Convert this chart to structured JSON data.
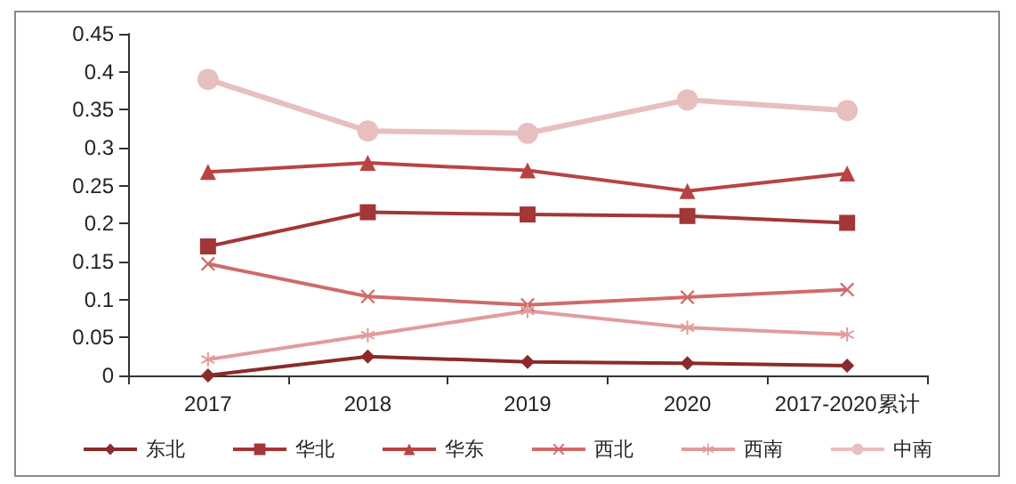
{
  "chart_data": {
    "type": "line",
    "categories": [
      "2017",
      "2018",
      "2019",
      "2020",
      "2017-2020累计"
    ],
    "series": [
      {
        "name": "东北",
        "color": "#8b2a2a",
        "marker": "diamond",
        "values": [
          0,
          0.025,
          0.018,
          0.016,
          0.013
        ]
      },
      {
        "name": "华北",
        "color": "#a33636",
        "marker": "square",
        "values": [
          0.17,
          0.215,
          0.212,
          0.21,
          0.201
        ]
      },
      {
        "name": "华东",
        "color": "#b94343",
        "marker": "triangle",
        "values": [
          0.268,
          0.28,
          0.27,
          0.243,
          0.266
        ]
      },
      {
        "name": "西北",
        "color": "#d06a6a",
        "marker": "cross",
        "values": [
          0.147,
          0.104,
          0.093,
          0.103,
          0.113
        ]
      },
      {
        "name": "西南",
        "color": "#e09c9c",
        "marker": "star",
        "values": [
          0.021,
          0.053,
          0.085,
          0.063,
          0.054
        ]
      },
      {
        "name": "中南",
        "color": "#e8bfbf",
        "marker": "circle",
        "values": [
          0.39,
          0.322,
          0.319,
          0.363,
          0.349
        ]
      }
    ],
    "ylim": [
      0,
      0.45
    ],
    "yticks": [
      0,
      0.05,
      0.1,
      0.15,
      0.2,
      0.25,
      0.3,
      0.35,
      0.4,
      0.45
    ],
    "grid": false,
    "legend": "bottom",
    "line_style": "solid"
  }
}
